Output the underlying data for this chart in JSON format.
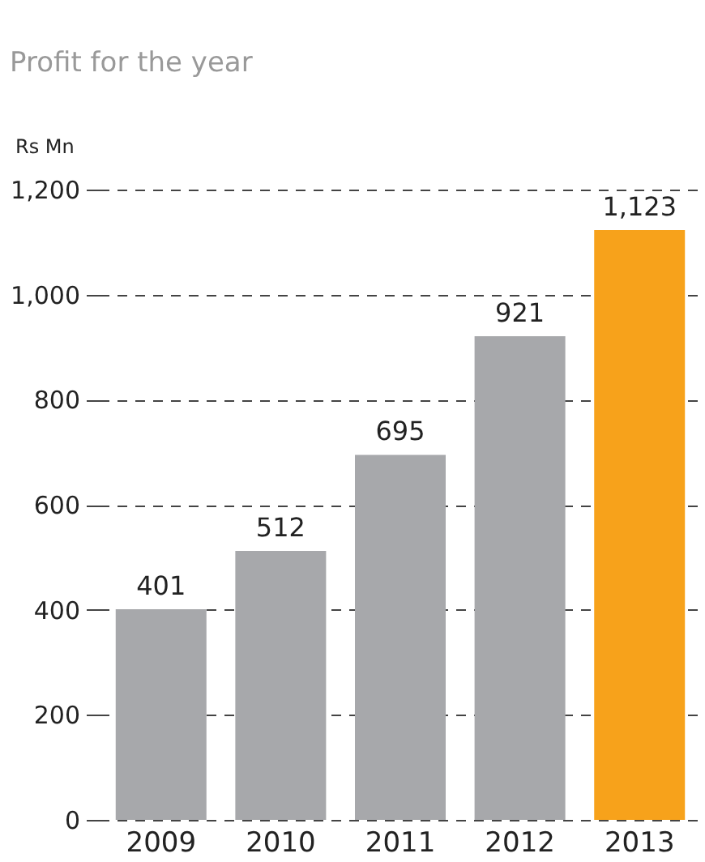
{
  "chart_data": {
    "type": "bar",
    "title": "Profit for the year",
    "ylabel": "Rs Mn",
    "categories": [
      "2009",
      "2010",
      "2011",
      "2012",
      "2013"
    ],
    "values": [
      401,
      512,
      695,
      921,
      1123
    ],
    "value_labels": [
      "401",
      "512",
      "695",
      "921",
      "1,123"
    ],
    "colors": [
      "#a7a8ab",
      "#a7a8ab",
      "#a7a8ab",
      "#a7a8ab",
      "#f7a21b"
    ],
    "ylim": [
      0,
      1200
    ],
    "yticks": [
      0,
      200,
      400,
      600,
      800,
      {
        "value": 1000,
        "label": "1,000"
      },
      {
        "value": 1200,
        "label": "1,200"
      }
    ],
    "grid": "y"
  }
}
